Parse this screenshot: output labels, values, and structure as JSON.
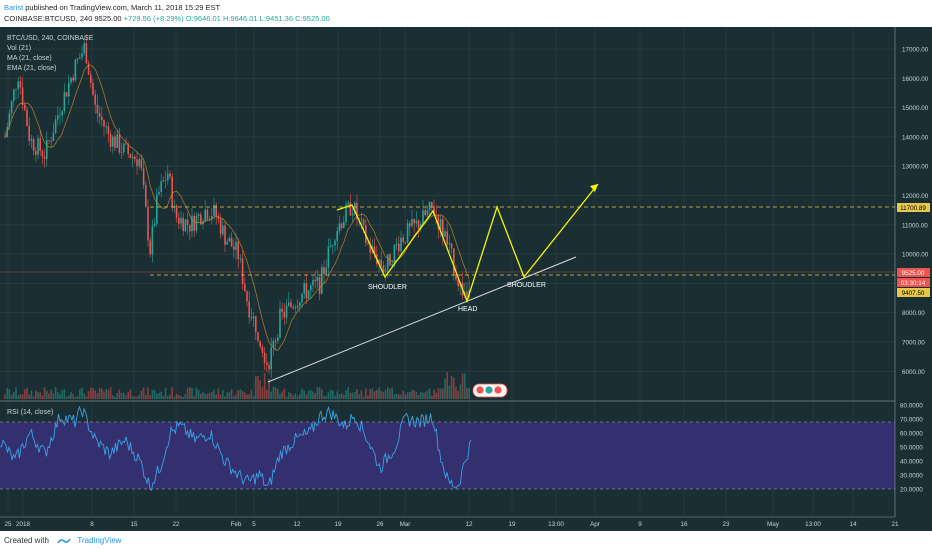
{
  "header": {
    "author": "Barist",
    "published": "published on TradingView.com, March 11, 2018 15:29 EST",
    "symbol": "COINBASE:BTCUSD, 240",
    "last": "9525.00",
    "change": "+729.56 (+8.29%)",
    "o": "O:9646.01",
    "h": "H:9646.01",
    "l": "L:9451.36",
    "c": "C:9525.00"
  },
  "legend": {
    "symbol": "BTC/USD, 240, COINBASE",
    "vol": "Vol (21)",
    "ma": "MA (21, close)",
    "ema": "EMA (21, close)",
    "rsi": "RSI (14, close)"
  },
  "price_axis": {
    "ticks": [
      "17000.00",
      "16000.00",
      "15000.00",
      "14000.00",
      "13000.00",
      "12000.00",
      "11000.00",
      "10000.00",
      "9000.00",
      "8000.00",
      "7000.00",
      "6000.00"
    ],
    "badge_top": "11700.89",
    "badge_last": "9525.00",
    "badge_timer": "03:30:14",
    "badge_low": "9407.50"
  },
  "rsi_axis": {
    "ticks": [
      "80.0000",
      "70.0000",
      "60.0000",
      "50.0000",
      "40.0000",
      "30.0000",
      "20.0000"
    ]
  },
  "time_axis": {
    "labels": [
      "25",
      "2018",
      "8",
      "15",
      "22",
      "Feb",
      "5",
      "12",
      "19",
      "26",
      "Mar",
      "12",
      "19",
      "13:00",
      "Apr",
      "9",
      "16",
      "23",
      "May",
      "13:00",
      "14",
      "21"
    ]
  },
  "annotations": {
    "shoulder_left": "SHOUDLER",
    "head": "HEAD",
    "shoulder_right": "SHOUDLER"
  },
  "colors": {
    "background": "#1a2f33",
    "up": "#26a69a",
    "down": "#ef5350",
    "pattern": "#f5f500",
    "neckline": "#e8c84a",
    "ma": "#c88a2a",
    "rsi_line": "#3aa3e3",
    "rsi_band": "#3a2f7a"
  },
  "chart_data": [
    {
      "type": "candlestick",
      "title": "BTC/USD, 240, COINBASE",
      "ylim": [
        5400,
        17600
      ],
      "x": [
        "2018-01-25",
        "2018-01-01",
        "2018-01-08",
        "2018-01-15",
        "2018-01-22",
        "2018-02-01",
        "2018-02-05",
        "2018-02-12",
        "2018-02-19",
        "2018-02-26",
        "2018-03-01",
        "2018-03-12"
      ],
      "close_path": [
        {
          "t": "2017-12-25",
          "p": 14000
        },
        {
          "t": "2017-12-28",
          "p": 16200
        },
        {
          "t": "2017-12-31",
          "p": 14100
        },
        {
          "t": "2018-01-03",
          "p": 14800
        },
        {
          "t": "2018-01-06",
          "p": 17100
        },
        {
          "t": "2018-01-09",
          "p": 15500
        },
        {
          "t": "2018-01-12",
          "p": 13800
        },
        {
          "t": "2018-01-15",
          "p": 13600
        },
        {
          "t": "2018-01-17",
          "p": 10000
        },
        {
          "t": "2018-01-20",
          "p": 12800
        },
        {
          "t": "2018-01-23",
          "p": 11000
        },
        {
          "t": "2018-01-27",
          "p": 11500
        },
        {
          "t": "2018-01-31",
          "p": 10000
        },
        {
          "t": "2018-02-03",
          "p": 8500
        },
        {
          "t": "2018-02-06",
          "p": 6200
        },
        {
          "t": "2018-02-09",
          "p": 8400
        },
        {
          "t": "2018-02-13",
          "p": 8800
        },
        {
          "t": "2018-02-16",
          "p": 10000
        },
        {
          "t": "2018-02-20",
          "p": 11700
        },
        {
          "t": "2018-02-23",
          "p": 10100
        },
        {
          "t": "2018-02-25",
          "p": 9500
        },
        {
          "t": "2018-02-28",
          "p": 10600
        },
        {
          "t": "2018-03-04",
          "p": 11600
        },
        {
          "t": "2018-03-07",
          "p": 9900
        },
        {
          "t": "2018-03-09",
          "p": 8600
        },
        {
          "t": "2018-03-11",
          "p": 9525
        }
      ],
      "levels": {
        "resistance": 11700.89,
        "support": 9407.5,
        "last": 9525.0
      },
      "projection": [
        {
          "t": "2018-02-20",
          "p": 11800
        },
        {
          "t": "2018-02-26",
          "p": 9500
        },
        {
          "t": "2018-03-05",
          "p": 11600
        },
        {
          "t": "2018-03-10",
          "p": 8600
        },
        {
          "t": "2018-03-14",
          "p": 11700
        },
        {
          "t": "2018-03-19",
          "p": 9500
        },
        {
          "t": "2018-03-30",
          "p": 12500
        }
      ],
      "trendline": [
        {
          "t": "2018-02-06",
          "p": 6000
        },
        {
          "t": "2018-03-24",
          "p": 10100
        }
      ]
    },
    {
      "type": "line",
      "title": "RSI (14, close)",
      "ylim": [
        15,
        80
      ],
      "bands": [
        30,
        70
      ],
      "last": 53
    }
  ]
}
